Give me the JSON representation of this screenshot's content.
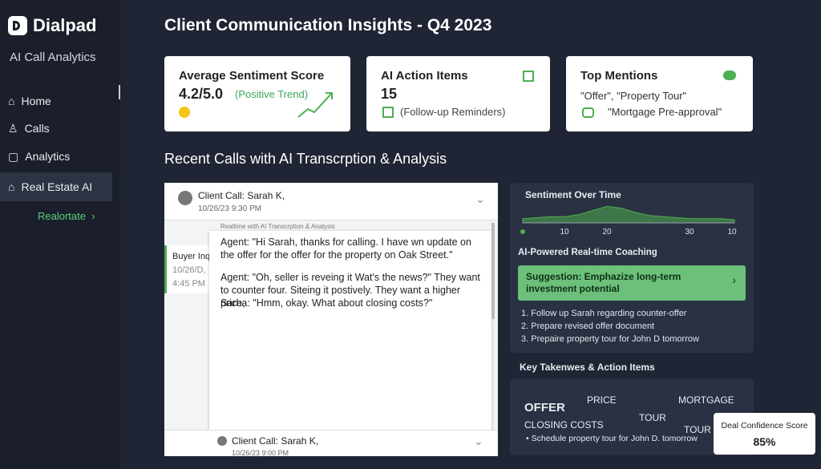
{
  "sidebar": {
    "brand": "Dialpad",
    "subtitle": "AI Call Analytics",
    "nav": [
      "Home",
      "Calls",
      "Analytics",
      "Real Estate AI"
    ],
    "sub_link": "Realortate"
  },
  "header": {
    "title": "Client Communication Insights - Q4 2023"
  },
  "cards": [
    {
      "title": "Average Sentiment Score",
      "value": "4.2/5.0",
      "note": "(Positive Trend)"
    },
    {
      "title": "AI Action Items",
      "value": "15",
      "note": "(Follow-up Reminders)"
    },
    {
      "title": "Top Mentions",
      "line1": "\"Offer\", \"Property Tour\"",
      "line2": "\"Mortgage Pre-approval\""
    }
  ],
  "section_title": "Recent Calls with AI Transcrption & Analysis",
  "call_panel": {
    "header": "Client Call: Sarah K,",
    "header_date": "10/26/23 9:30 PM",
    "caption": "Realtime with AI Transcrption & Analysis",
    "list_item": [
      "Buyer Inq",
      "10/26/D,",
      "4:45 PM"
    ],
    "transcript": [
      "Agent: \"Hi Sarah, thanks for calling. I have wn update on the offer for the offer for the property on Oak Street.\"",
      "Agent: \"Oh, seller is reveing it Wat's the news?\" They want to counter four. Siteing it postively. They want a higher price,",
      "Sarha: \"Hmm, okay. What about closing costs?\""
    ],
    "footer": "Client Call: Sarah K,",
    "footer_date": "10/26/23 9:00 PM"
  },
  "sentiment_chart": {
    "type": "area",
    "title": "Sentiment Over Time",
    "xticks": [
      "10",
      "20",
      "30",
      "10"
    ],
    "ylim": [
      0,
      10
    ],
    "values": [
      2,
      2.5,
      3,
      3,
      4,
      6,
      8,
      7,
      5,
      3.5,
      3,
      2.5,
      2,
      2,
      2,
      1.5
    ],
    "color": "#4caf50"
  },
  "coaching": {
    "title": "AI-Powered Real-time Coaching",
    "suggestion": "Suggestion: Emphazize long-term investment potential",
    "steps": [
      "1. Follow up Sarah regarding counter-offer",
      "2. Prepare revised offer document",
      "3. Prepaire property tour for John D tomorrow"
    ]
  },
  "takeaways": {
    "title": "Key Takenwes & Action Items",
    "words": [
      "OFFER",
      "PRICE",
      "MORTGAGE",
      "CLOSING COSTS",
      "TOUR",
      "TOUR"
    ],
    "bullet": "• Schedule property tour for John D. tomorrow"
  },
  "confidence": {
    "label": "Deal Confidence Score",
    "value": "85%"
  }
}
